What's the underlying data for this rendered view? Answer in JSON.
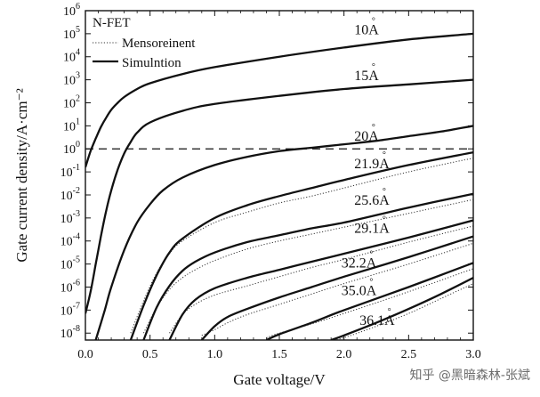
{
  "chart_data": {
    "type": "line",
    "title": "N-FET",
    "xlabel": "Gate voltage/V",
    "ylabel": "Gate current density/A·cm⁻²",
    "xlim": [
      0.0,
      3.0
    ],
    "ylim_log10": [
      -8.3,
      6
    ],
    "x_ticks": [
      "0.0",
      "0.5",
      "1.0",
      "1.5",
      "2.0",
      "2.5",
      "3.0"
    ],
    "y_tick_exponents": [
      "6",
      "5",
      "4",
      "3",
      "2",
      "1",
      "0",
      "-1",
      "-2",
      "-3",
      "-4",
      "-5",
      "-6",
      "-7",
      "-8"
    ],
    "y_tick_base": "10",
    "reference_line": {
      "y": 1,
      "style": "dashed"
    },
    "legend": {
      "measurement": "Mensoreinent",
      "simulation": "Simulntion"
    },
    "series": [
      {
        "name": "10Å",
        "label_at_x": 2.08,
        "label_at_log_y": 4.98,
        "simulation": {
          "x": [
            0.0,
            0.04,
            0.08,
            0.12,
            0.16,
            0.2,
            0.25,
            0.3,
            0.4,
            0.5,
            0.75,
            1.0,
            1.5,
            2.0,
            2.5,
            3.0
          ],
          "log_y": [
            -0.8,
            -0.1,
            0.45,
            0.95,
            1.35,
            1.7,
            2.0,
            2.25,
            2.6,
            2.85,
            3.25,
            3.55,
            4.0,
            4.4,
            4.75,
            5.0
          ]
        },
        "measurement": null
      },
      {
        "name": "15Å",
        "label_at_x": 2.08,
        "label_at_log_y": 2.98,
        "simulation": {
          "x": [
            0.0,
            0.04,
            0.08,
            0.12,
            0.16,
            0.2,
            0.25,
            0.3,
            0.35,
            0.4,
            0.5,
            0.75,
            1.0,
            1.5,
            2.0,
            2.5,
            3.0
          ],
          "log_y": [
            -7.15,
            -6.2,
            -5.0,
            -3.8,
            -2.7,
            -1.8,
            -0.9,
            -0.2,
            0.3,
            0.7,
            1.15,
            1.65,
            1.95,
            2.3,
            2.6,
            2.8,
            3.0
          ]
        },
        "measurement": null
      },
      {
        "name": "20Å",
        "label_at_x": 2.08,
        "label_at_log_y": 0.35,
        "simulation": {
          "x": [
            0.08,
            0.15,
            0.2,
            0.3,
            0.4,
            0.5,
            0.6,
            0.75,
            1.0,
            1.25,
            1.5,
            1.75,
            2.0,
            2.25,
            2.5,
            2.75,
            3.0
          ],
          "log_y": [
            -8.3,
            -7.0,
            -6.0,
            -4.4,
            -3.2,
            -2.4,
            -1.8,
            -1.25,
            -0.7,
            -0.35,
            -0.1,
            0.05,
            0.2,
            0.35,
            0.55,
            0.75,
            1.0
          ]
        },
        "measurement": null
      },
      {
        "name": "21.9Å",
        "label_at_x": 2.08,
        "label_at_log_y": -0.85,
        "simulation": {
          "x": [
            0.35,
            0.45,
            0.55,
            0.65,
            0.75,
            1.0,
            1.25,
            1.5,
            1.75,
            2.0,
            2.5,
            3.0
          ],
          "log_y": [
            -8.3,
            -6.8,
            -5.5,
            -4.5,
            -3.9,
            -3.0,
            -2.45,
            -2.05,
            -1.7,
            -1.35,
            -0.7,
            -0.15
          ]
        },
        "measurement": {
          "x": [
            0.35,
            0.45,
            0.55,
            0.65,
            0.75,
            1.0,
            1.25,
            1.5,
            1.75,
            2.0,
            2.5,
            3.0
          ],
          "log_y": [
            -8.0,
            -6.6,
            -5.4,
            -4.55,
            -4.0,
            -3.2,
            -2.75,
            -2.35,
            -2.05,
            -1.7,
            -1.0,
            -0.4
          ]
        }
      },
      {
        "name": "25.6Å",
        "label_at_x": 2.08,
        "label_at_log_y": -2.42,
        "simulation": {
          "x": [
            0.45,
            0.55,
            0.65,
            0.75,
            0.85,
            1.0,
            1.25,
            1.5,
            1.75,
            2.0,
            2.5,
            3.0
          ],
          "log_y": [
            -8.3,
            -6.9,
            -5.95,
            -5.3,
            -4.9,
            -4.5,
            -4.05,
            -3.75,
            -3.45,
            -3.2,
            -2.55,
            -1.95
          ]
        },
        "measurement": {
          "x": [
            0.45,
            0.55,
            0.65,
            0.75,
            0.85,
            1.0,
            1.25,
            1.5,
            1.75,
            2.0,
            2.5,
            3.0
          ],
          "log_y": [
            -8.0,
            -6.9,
            -6.1,
            -5.6,
            -5.25,
            -4.85,
            -4.35,
            -4.0,
            -3.7,
            -3.4,
            -2.8,
            -2.2
          ]
        }
      },
      {
        "name": "29.1Å",
        "label_at_x": 2.08,
        "label_at_log_y": -3.65,
        "simulation": {
          "x": [
            0.65,
            0.75,
            0.85,
            1.0,
            1.25,
            1.5,
            1.75,
            2.0,
            2.5,
            3.0
          ],
          "log_y": [
            -8.3,
            -7.2,
            -6.55,
            -6.05,
            -5.6,
            -5.25,
            -4.9,
            -4.55,
            -3.85,
            -3.1
          ]
        },
        "measurement": {
          "x": [
            0.65,
            0.75,
            0.85,
            1.0,
            1.25,
            1.5,
            1.75,
            2.0,
            2.5,
            3.0
          ],
          "log_y": [
            -8.0,
            -7.2,
            -6.75,
            -6.35,
            -5.95,
            -5.55,
            -5.15,
            -4.8,
            -4.05,
            -3.35
          ]
        }
      },
      {
        "name": "32.2Å",
        "label_at_x": 1.98,
        "label_at_log_y": -5.15,
        "simulation": {
          "x": [
            0.9,
            1.0,
            1.1,
            1.25,
            1.5,
            1.75,
            2.0,
            2.5,
            3.0
          ],
          "log_y": [
            -8.3,
            -7.7,
            -7.3,
            -6.95,
            -6.45,
            -6.0,
            -5.55,
            -4.7,
            -3.8
          ]
        },
        "measurement": {
          "x": [
            0.9,
            1.0,
            1.1,
            1.25,
            1.5,
            1.75,
            2.0,
            2.5,
            3.0
          ],
          "log_y": [
            -8.1,
            -7.85,
            -7.55,
            -7.2,
            -6.75,
            -6.3,
            -5.85,
            -5.0,
            -4.1
          ]
        }
      },
      {
        "name": "35.0Å",
        "label_at_x": 1.98,
        "label_at_log_y": -6.35,
        "simulation": {
          "x": [
            1.4,
            1.5,
            1.75,
            2.0,
            2.5,
            3.0
          ],
          "log_y": [
            -8.3,
            -8.05,
            -7.55,
            -7.0,
            -6.0,
            -4.95
          ]
        },
        "measurement": {
          "x": [
            1.4,
            1.5,
            1.75,
            2.0,
            2.5,
            3.0
          ],
          "log_y": [
            -8.2,
            -8.0,
            -7.6,
            -7.15,
            -6.2,
            -5.2
          ]
        }
      },
      {
        "name": "36.1Å",
        "label_at_x": 2.12,
        "label_at_log_y": -7.65,
        "simulation": {
          "x": [
            1.9,
            2.0,
            2.25,
            2.5,
            2.75,
            3.0
          ],
          "log_y": [
            -8.3,
            -8.1,
            -7.55,
            -6.95,
            -6.3,
            -5.6
          ]
        },
        "measurement": {
          "x": [
            1.9,
            2.0,
            2.25,
            2.5,
            2.75,
            3.0
          ],
          "log_y": [
            -8.3,
            -8.2,
            -7.7,
            -7.15,
            -6.5,
            -5.85
          ]
        }
      }
    ]
  },
  "watermark": "知乎 @黑暗森林-张斌"
}
